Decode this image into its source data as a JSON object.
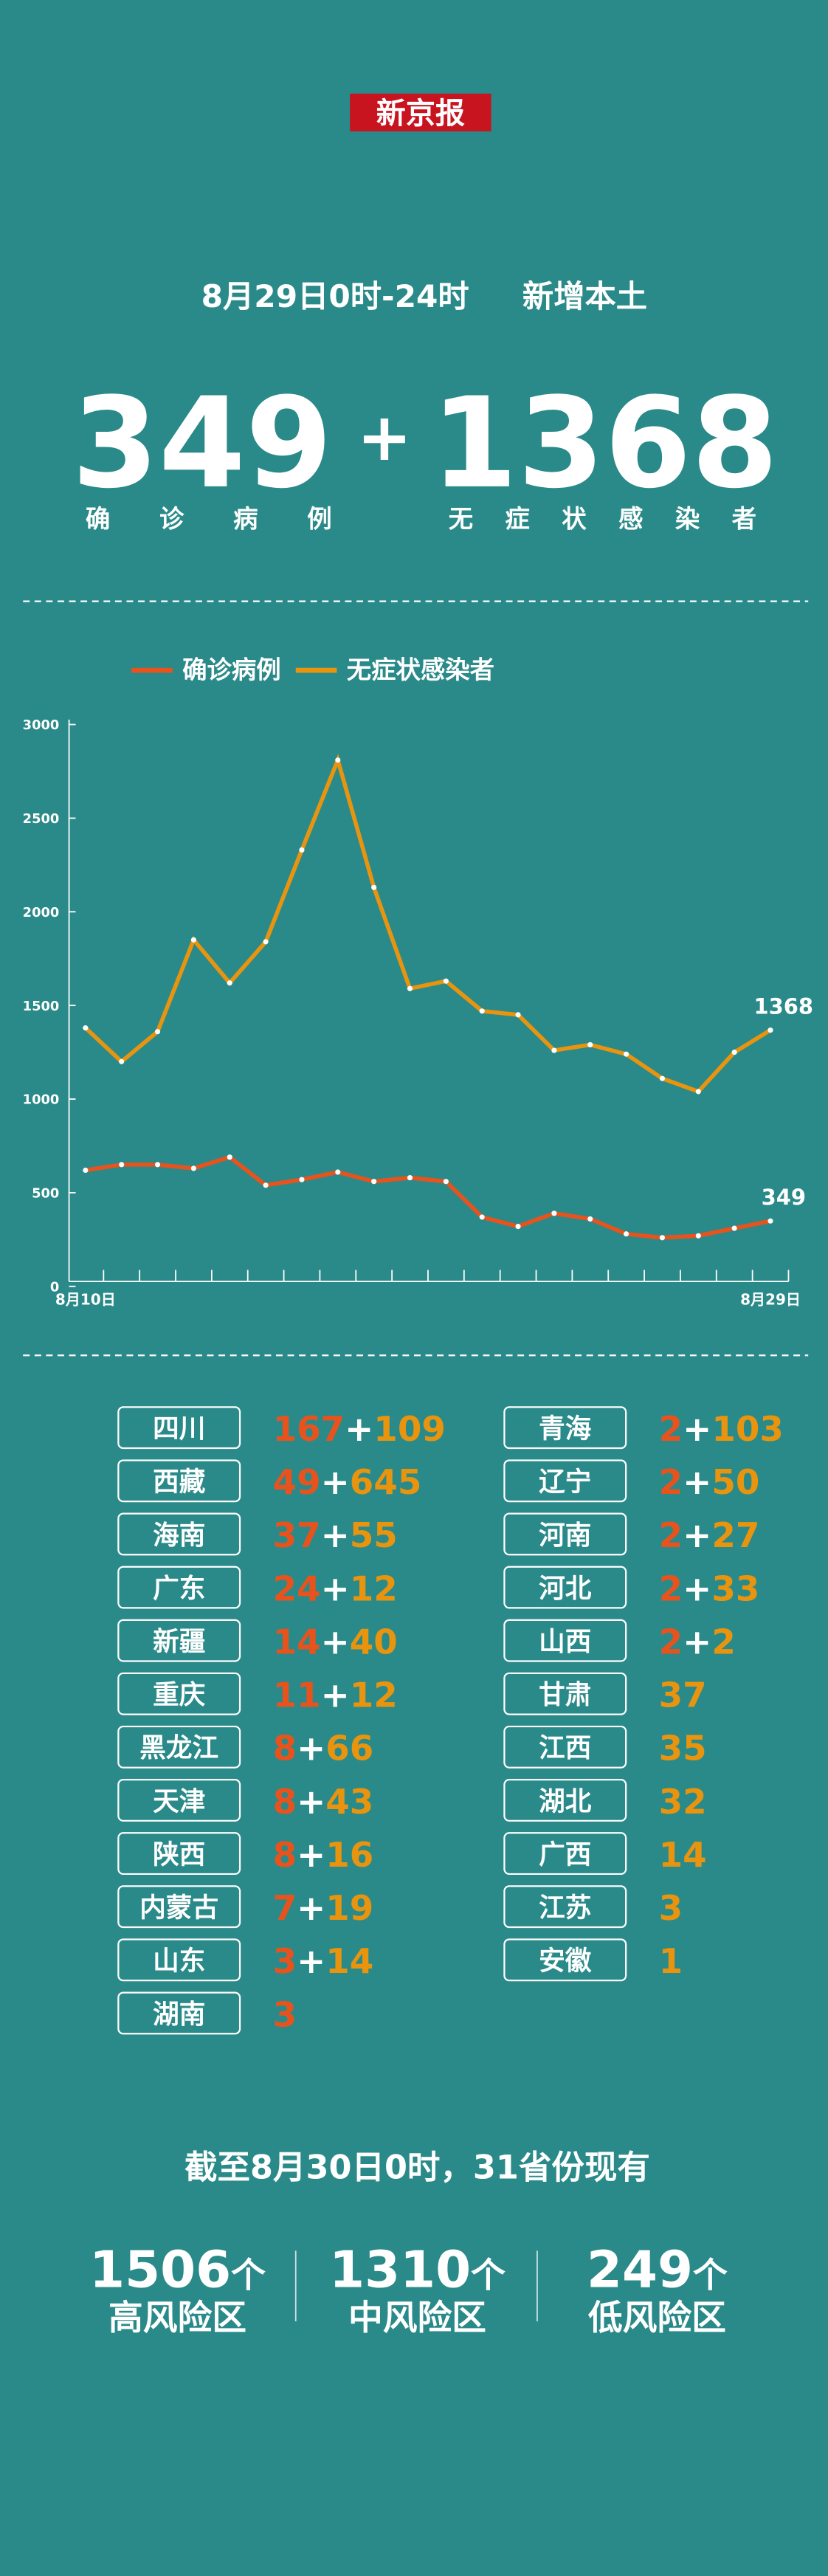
{
  "header": {
    "logo": "新京报",
    "date": "8月29日0时-24时",
    "subject": "新增本土",
    "plus": "+"
  },
  "headline": {
    "confirmed": 349,
    "confirmed_label": "确诊病例",
    "asymptomatic": 1368,
    "asymptomatic_label": "无症状感染者"
  },
  "chart_data": {
    "type": "line",
    "categories": [
      "8月10日",
      null,
      null,
      null,
      null,
      null,
      null,
      null,
      null,
      null,
      null,
      null,
      null,
      null,
      null,
      null,
      null,
      null,
      null,
      "8月29日"
    ],
    "series": [
      {
        "name": "确诊病例",
        "color": "#e8531d",
        "values": [
          620,
          650,
          650,
          630,
          690,
          540,
          570,
          610,
          560,
          580,
          560,
          370,
          320,
          390,
          360,
          280,
          260,
          270,
          310,
          349
        ]
      },
      {
        "name": "无症状感染者",
        "color": "#e8940f",
        "values": [
          1380,
          1200,
          1360,
          1850,
          1620,
          1840,
          2330,
          2810,
          2130,
          1590,
          1630,
          1470,
          1450,
          1260,
          1290,
          1240,
          1110,
          1040,
          1250,
          1368
        ]
      }
    ],
    "ylim": [
      0,
      3000
    ],
    "yticks": [
      0,
      500,
      1000,
      1500,
      2000,
      2500,
      3000
    ]
  },
  "provinces": {
    "separator": "+",
    "left": [
      {
        "name": "四川",
        "confirmed": 167,
        "asymptomatic": 109
      },
      {
        "name": "西藏",
        "confirmed": 49,
        "asymptomatic": 645
      },
      {
        "name": "海南",
        "confirmed": 37,
        "asymptomatic": 55
      },
      {
        "name": "广东",
        "confirmed": 24,
        "asymptomatic": 12
      },
      {
        "name": "新疆",
        "confirmed": 14,
        "asymptomatic": 40
      },
      {
        "name": "重庆",
        "confirmed": 11,
        "asymptomatic": 12
      },
      {
        "name": "黑龙江",
        "confirmed": 8,
        "asymptomatic": 66
      },
      {
        "name": "天津",
        "confirmed": 8,
        "asymptomatic": 43
      },
      {
        "name": "陕西",
        "confirmed": 8,
        "asymptomatic": 16
      },
      {
        "name": "内蒙古",
        "confirmed": 7,
        "asymptomatic": 19
      },
      {
        "name": "山东",
        "confirmed": 3,
        "asymptomatic": 14
      },
      {
        "name": "湖南",
        "confirmed": 3
      }
    ],
    "right": [
      {
        "name": "青海",
        "confirmed": 2,
        "asymptomatic": 103
      },
      {
        "name": "辽宁",
        "confirmed": 2,
        "asymptomatic": 50
      },
      {
        "name": "河南",
        "confirmed": 2,
        "asymptomatic": 27
      },
      {
        "name": "河北",
        "confirmed": 2,
        "asymptomatic": 33
      },
      {
        "name": "山西",
        "confirmed": 2,
        "asymptomatic": 2
      },
      {
        "name": "甘肃",
        "asymptomatic": 37
      },
      {
        "name": "江西",
        "asymptomatic": 35
      },
      {
        "name": "湖北",
        "asymptomatic": 32
      },
      {
        "name": "广西",
        "asymptomatic": 14
      },
      {
        "name": "江苏",
        "asymptomatic": 3
      },
      {
        "name": "安徽",
        "asymptomatic": 1
      }
    ]
  },
  "risk": {
    "title": "截至8月30日0时，31省份现有",
    "unit": "个",
    "areas": [
      {
        "count": 1506,
        "label": "高风险区"
      },
      {
        "count": 1310,
        "label": "中风险区"
      },
      {
        "count": 249,
        "label": "低风险区"
      }
    ]
  }
}
